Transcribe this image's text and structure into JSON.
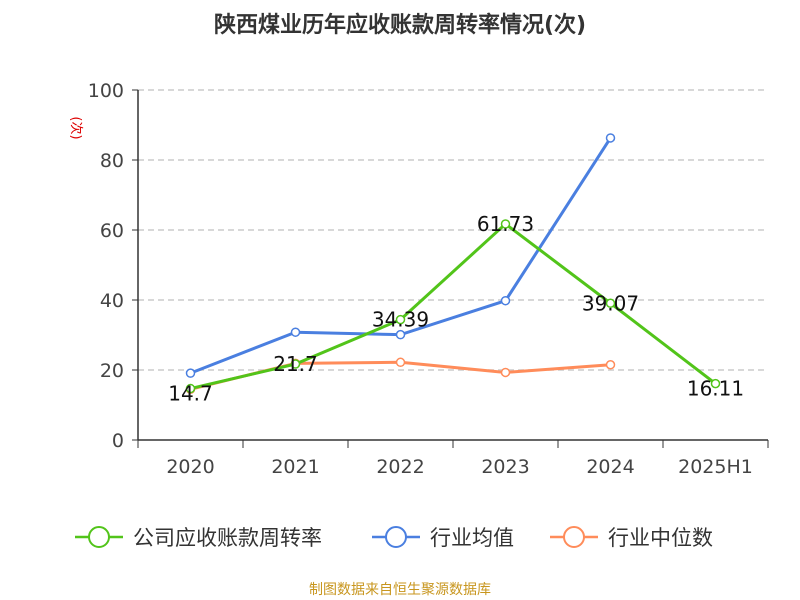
{
  "chart_data": {
    "type": "line",
    "title": "陕西煤业历年应收账款周转率情况(次)",
    "ylabel": "(次)",
    "ylim": [
      0,
      100
    ],
    "yticks": [
      0,
      20,
      40,
      60,
      80,
      100
    ],
    "grid": true,
    "legend_position": "bottom",
    "categories": [
      "2020",
      "2021",
      "2022",
      "2023",
      "2024",
      "2025H1"
    ],
    "series": [
      {
        "name": "公司应收账款周转率",
        "color": "#52c41a",
        "values": [
          14.7,
          21.7,
          34.39,
          61.73,
          39.07,
          16.11
        ],
        "labels": [
          "14.7",
          "21.7",
          "34.39",
          "61.73",
          "39.07",
          "16.11"
        ]
      },
      {
        "name": "行业均值",
        "color": "#4a7fe0",
        "values": [
          19.1,
          30.8,
          30.1,
          39.8,
          86.3,
          null
        ]
      },
      {
        "name": "行业中位数",
        "color": "#ff8c5a",
        "values": [
          14.5,
          21.9,
          22.2,
          19.3,
          21.5,
          null
        ]
      }
    ],
    "source": "制图数据来自恒生聚源数据库"
  }
}
